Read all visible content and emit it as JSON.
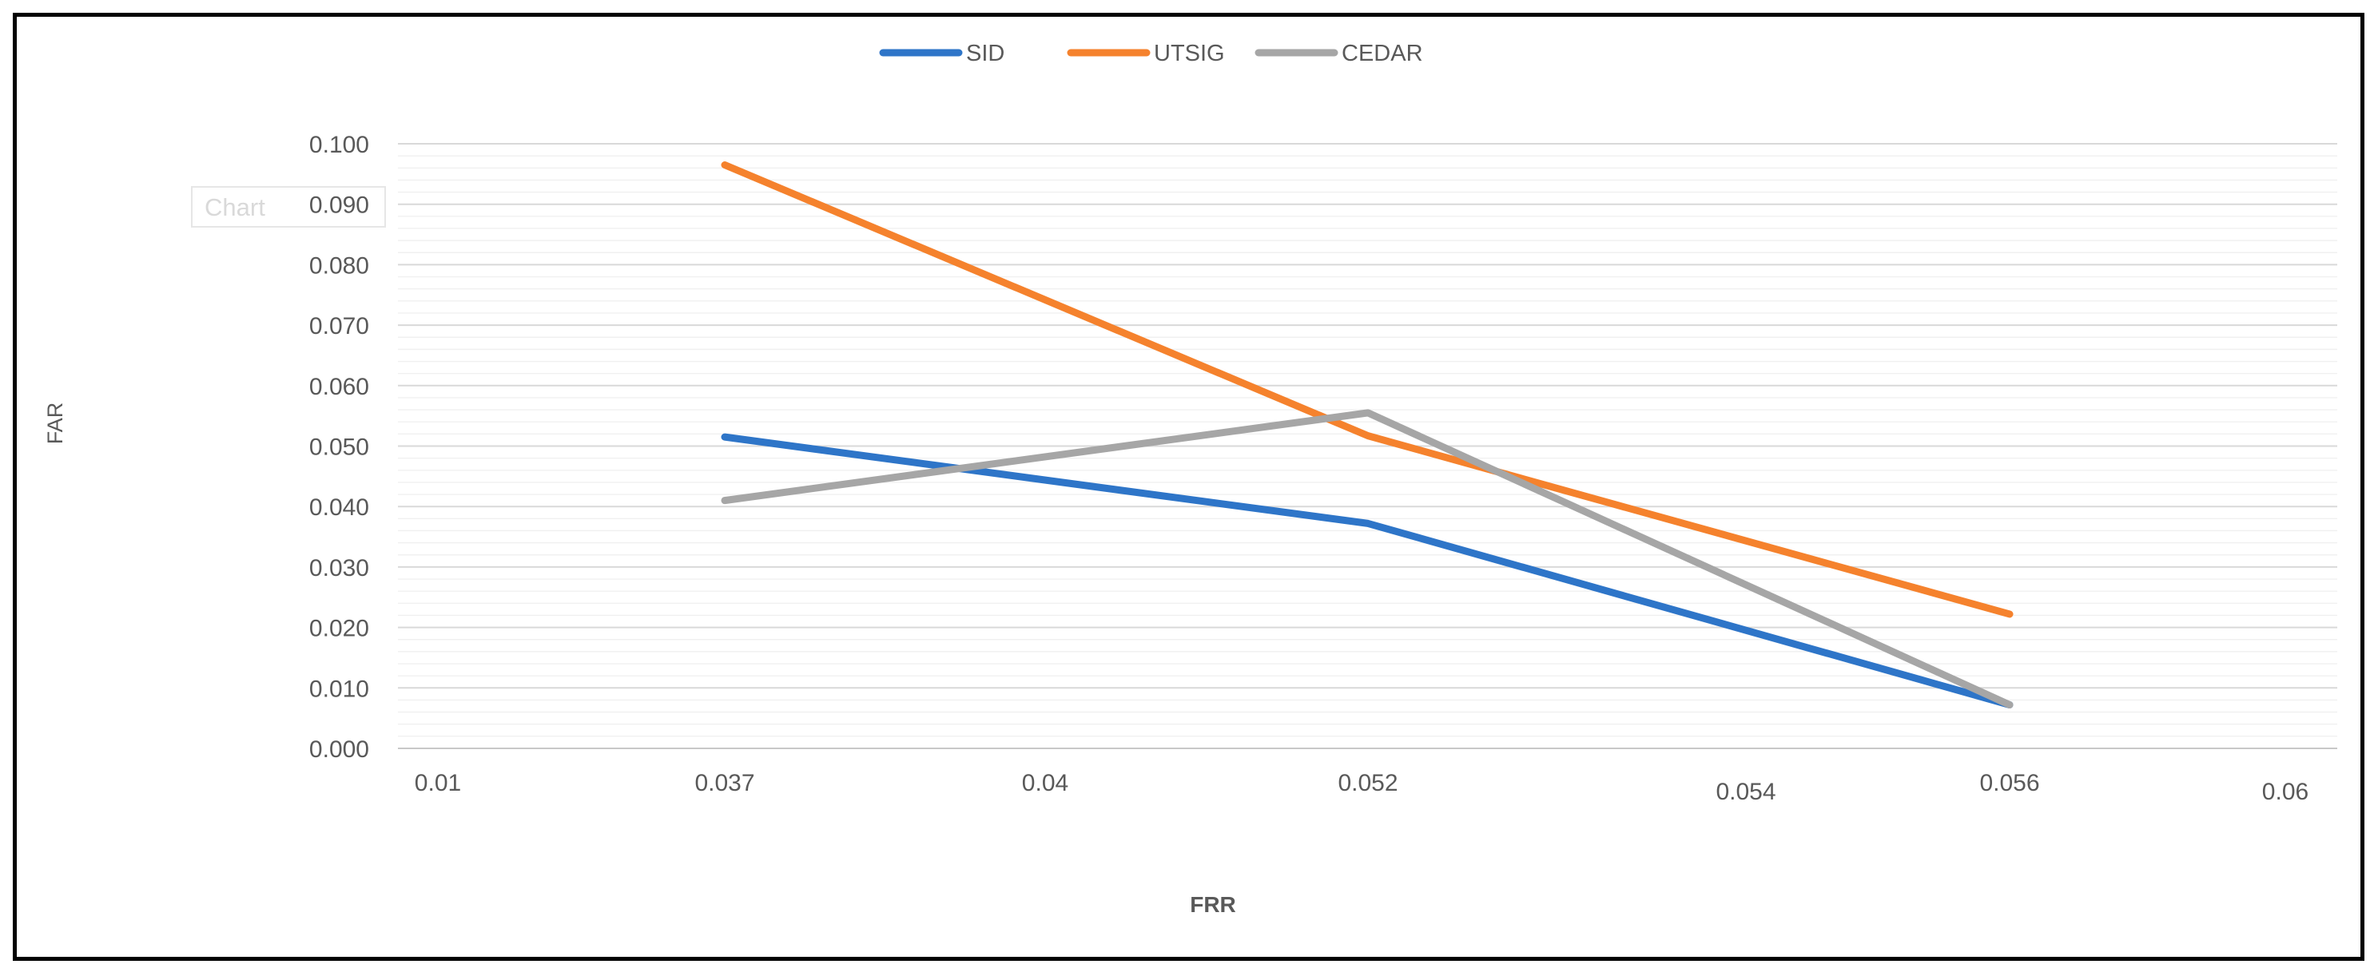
{
  "chart_data": {
    "type": "line",
    "xlabel": "FRR",
    "ylabel": "FAR",
    "ghost_label": "Chart",
    "categories": [
      "0.01",
      "0.037",
      "0.04",
      "0.052",
      "0.054",
      "0.056",
      "0.06"
    ],
    "x": [
      0.037,
      0.052,
      0.056
    ],
    "yticks": [
      "0.000",
      "0.010",
      "0.020",
      "0.030",
      "0.040",
      "0.050",
      "0.060",
      "0.070",
      "0.080",
      "0.090",
      "0.100"
    ],
    "ylim": [
      0,
      0.1
    ],
    "grid": true,
    "legend_position": "top",
    "series": [
      {
        "name": "SID",
        "color": "#2E75C8",
        "values": [
          0.0515,
          0.0372,
          0.0072
        ]
      },
      {
        "name": "UTSIG",
        "color": "#F5822D",
        "values": [
          0.0965,
          0.0517,
          0.0222
        ]
      },
      {
        "name": "CEDAR",
        "color": "#A6A6A6",
        "values": [
          0.041,
          0.0555,
          0.0072
        ]
      }
    ]
  }
}
